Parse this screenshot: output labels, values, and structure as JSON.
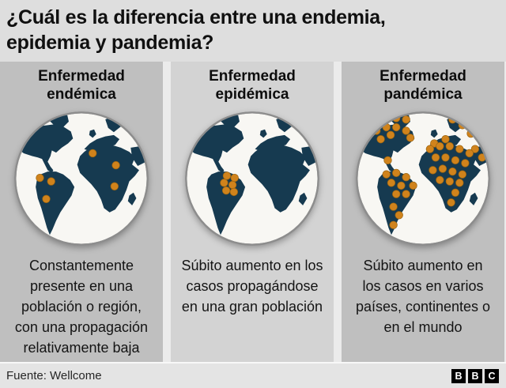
{
  "title": {
    "lines": [
      "¿Cuál es la diferencia entre una endemia,",
      "epidemia y pandemia?"
    ]
  },
  "panels": [
    {
      "id": "endemica",
      "heading_lines": [
        "Enfermedad",
        "endémica"
      ],
      "desc_lines": [
        "Constantemente",
        "presente en una",
        "población o región,",
        "con una propagación",
        "relativamente baja"
      ],
      "map": {
        "label": "mapa-mundo-endemia",
        "dots": [
          [
            41,
            99
          ],
          [
            57,
            104
          ],
          [
            50,
            129
          ],
          [
            116,
            64
          ],
          [
            149,
            81
          ],
          [
            147,
            111
          ]
        ]
      }
    },
    {
      "id": "epidemica",
      "heading_lines": [
        "Enfermedad",
        "epidémica"
      ],
      "desc_lines": [
        "Súbito aumento en los",
        "casos propagándose",
        "en una gran población"
      ],
      "map": {
        "label": "mapa-mundo-epidemia",
        "dots": [
          [
            64,
            96
          ],
          [
            75,
            99
          ],
          [
            60,
            106
          ],
          [
            72,
            109
          ],
          [
            63,
            117
          ],
          [
            74,
            119
          ]
        ]
      }
    },
    {
      "id": "pandemica",
      "heading_lines": [
        "Enfermedad",
        "pandémica"
      ],
      "desc_lines": [
        "Súbito aumento en",
        "los casos en varios",
        "países, continentes o",
        "en el mundo"
      ],
      "map": {
        "label": "mapa-mundo-pandemia",
        "dots": [
          [
            20,
            42
          ],
          [
            34,
            32
          ],
          [
            48,
            27
          ],
          [
            62,
            27
          ],
          [
            76,
            32
          ],
          [
            82,
            42
          ],
          [
            40,
            44
          ],
          [
            54,
            38
          ],
          [
            50,
            74
          ],
          [
            62,
            14
          ],
          [
            76,
            16
          ],
          [
            116,
            50
          ],
          [
            132,
            44
          ],
          [
            142,
            16
          ],
          [
            156,
            24
          ],
          [
            168,
            36
          ],
          [
            174,
            58
          ],
          [
            184,
            70
          ],
          [
            110,
            58
          ],
          [
            124,
            54
          ],
          [
            138,
            54
          ],
          [
            152,
            58
          ],
          [
            166,
            64
          ],
          [
            118,
            70
          ],
          [
            132,
            70
          ],
          [
            146,
            74
          ],
          [
            160,
            78
          ],
          [
            114,
            88
          ],
          [
            128,
            86
          ],
          [
            142,
            90
          ],
          [
            156,
            94
          ],
          [
            124,
            102
          ],
          [
            138,
            104
          ],
          [
            152,
            106
          ],
          [
            146,
            120
          ],
          [
            140,
            134
          ],
          [
            48,
            94
          ],
          [
            62,
            92
          ],
          [
            76,
            98
          ],
          [
            86,
            110
          ],
          [
            55,
            106
          ],
          [
            69,
            110
          ],
          [
            62,
            122
          ],
          [
            76,
            122
          ],
          [
            58,
            140
          ],
          [
            66,
            152
          ],
          [
            58,
            166
          ]
        ]
      }
    }
  ],
  "footer": {
    "source_label": "Fuente: Wellcome",
    "logo_letters": [
      "B",
      "B",
      "C"
    ]
  },
  "colors": {
    "page_bg": "#dedede",
    "panel_dark": "#bfbfbf",
    "panel_light": "#d3d3d3",
    "gap": "#ebebeb",
    "footer_bg": "#e4e4e4",
    "title_color": "#101010",
    "land": "#163a50",
    "ocean": "#f8f7f3",
    "ring": "#8d8d8d",
    "dot": "#d0831c",
    "dot_edge": "#9a6410"
  }
}
